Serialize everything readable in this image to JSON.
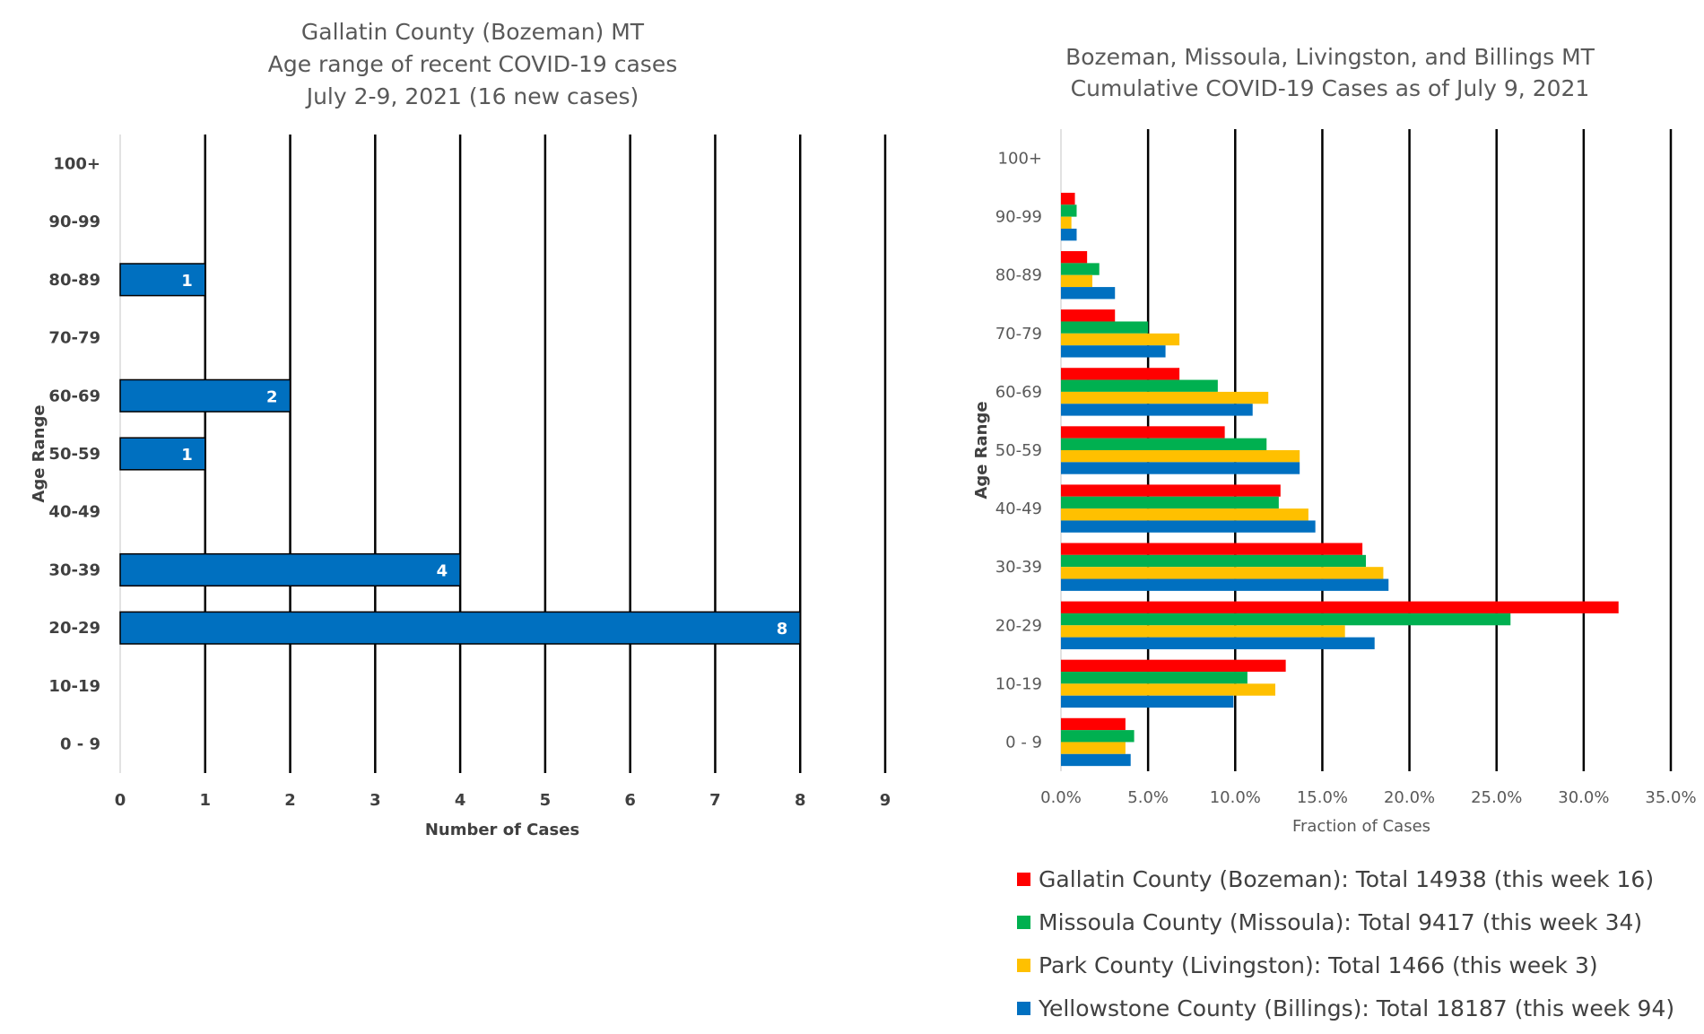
{
  "chart_data": [
    {
      "type": "bar",
      "orientation": "horizontal",
      "title": [
        "Gallatin County (Bozeman) MT",
        "Age range of recent COVID-19 cases",
        "July 2-9, 2021 (16 new cases)"
      ],
      "xlabel": "Number of Cases",
      "ylabel": "Age Range",
      "categories": [
        "0 - 9",
        "10-19",
        "20-29",
        "30-39",
        "40-49",
        "50-59",
        "60-69",
        "70-79",
        "80-89",
        "90-99",
        "100+"
      ],
      "values": [
        0,
        0,
        8,
        4,
        0,
        1,
        2,
        0,
        1,
        0,
        0
      ],
      "data_labels": [
        "",
        "",
        "8",
        "4",
        "",
        "1",
        "2",
        "",
        "1",
        "",
        ""
      ],
      "xlim": [
        0,
        9
      ],
      "xticks": [
        "0",
        "1",
        "2",
        "3",
        "4",
        "5",
        "6",
        "7",
        "8",
        "9"
      ],
      "color": "#0070c0",
      "grid": "vertical"
    },
    {
      "type": "bar",
      "orientation": "horizontal",
      "title": [
        "Bozeman, Missoula, Livingston, and Billings MT",
        "Cumulative COVID-19 Cases as of July 9, 2021"
      ],
      "xlabel": "Fraction of Cases",
      "ylabel": "Age Range",
      "categories": [
        "0 - 9",
        "10-19",
        "20-29",
        "30-39",
        "40-49",
        "50-59",
        "60-69",
        "70-79",
        "80-89",
        "90-99",
        "100+"
      ],
      "xlim": [
        0,
        35
      ],
      "xticks": [
        "0.0%",
        "5.0%",
        "10.0%",
        "15.0%",
        "20.0%",
        "25.0%",
        "30.0%",
        "35.0%"
      ],
      "grid": "vertical",
      "legend_position": "bottom",
      "series": [
        {
          "name": "Gallatin County (Bozeman): Total 14938 (this week 16)",
          "color": "#ff0000",
          "values": [
            3.7,
            12.9,
            32.0,
            17.3,
            12.6,
            9.4,
            6.8,
            3.1,
            1.5,
            0.8,
            0.0
          ]
        },
        {
          "name": "Missoula County (Missoula): Total 9417 (this week 34)",
          "color": "#00b050",
          "values": [
            4.2,
            10.7,
            25.8,
            17.5,
            12.5,
            11.8,
            9.0,
            5.0,
            2.2,
            0.9,
            0.0
          ]
        },
        {
          "name": "Park County (Livingston): Total 1466 (this week 3)",
          "color": "#ffc000",
          "values": [
            3.7,
            12.3,
            16.3,
            18.5,
            14.2,
            13.7,
            11.9,
            6.8,
            1.8,
            0.6,
            0.0
          ]
        },
        {
          "name": "Yellowstone County (Billings): Total 18187 (this week 94)",
          "color": "#0070c0",
          "values": [
            4.0,
            9.9,
            18.0,
            18.8,
            14.6,
            13.7,
            11.0,
            6.0,
            3.1,
            0.9,
            0.0
          ]
        }
      ]
    }
  ]
}
